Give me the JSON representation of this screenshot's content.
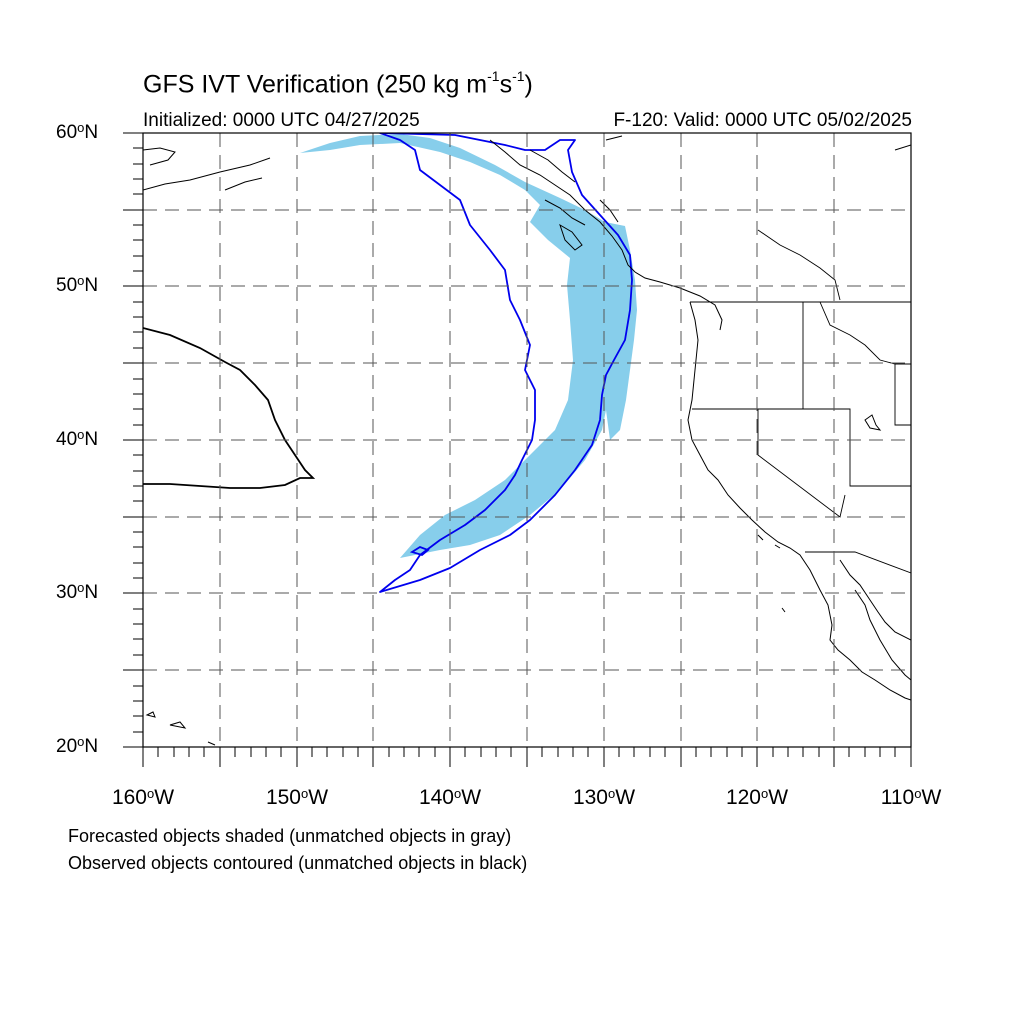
{
  "header": {
    "title_main": "GFS IVT Verification (250 kg m",
    "title_exp1": "-1",
    "title_mid": "s",
    "title_exp2": "-1",
    "title_end": ")",
    "initialized": "Initialized: 0000 UTC 04/27/2025",
    "valid": "F-120: Valid: 0000 UTC 05/02/2025"
  },
  "axes": {
    "lat_labels": [
      {
        "num": "60",
        "suffix": "N"
      },
      {
        "num": "50",
        "suffix": "N"
      },
      {
        "num": "40",
        "suffix": "N"
      },
      {
        "num": "30",
        "suffix": "N"
      },
      {
        "num": "20",
        "suffix": "N"
      }
    ],
    "lon_labels": [
      {
        "num": "160",
        "suffix": "W"
      },
      {
        "num": "150",
        "suffix": "W"
      },
      {
        "num": "140",
        "suffix": "W"
      },
      {
        "num": "130",
        "suffix": "W"
      },
      {
        "num": "120",
        "suffix": "W"
      },
      {
        "num": "110",
        "suffix": "W"
      }
    ],
    "degree_symbol": "o",
    "lat_range": [
      20,
      60
    ],
    "lon_range": [
      -160,
      -110
    ],
    "gridlines": "dashed every 5 degrees"
  },
  "legend_notes": [
    "Forecasted objects shaded (unmatched objects in gray)",
    "Observed objects contoured (unmatched objects in black)"
  ],
  "colors": {
    "forecast_fill": "#87ceeb",
    "observed_contour": "#0000ee",
    "coastline": "#000000",
    "gridline": "#555555"
  }
}
